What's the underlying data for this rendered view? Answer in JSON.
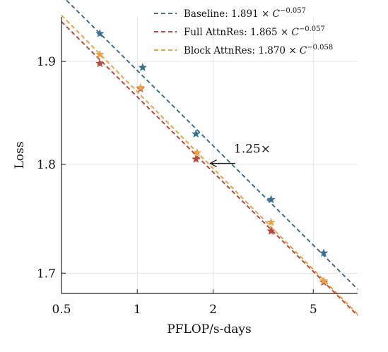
{
  "chart_data": {
    "type": "scatter",
    "title": "",
    "xlabel": "PFLOP/s-days",
    "ylabel": "Loss",
    "x_scale": "log",
    "y_scale": "log",
    "xlim": [
      0.5,
      7.5
    ],
    "ylim": [
      1.682,
      1.945
    ],
    "x_ticks": [
      {
        "value": 0.5,
        "label": "0.5"
      },
      {
        "value": 1,
        "label": "1"
      },
      {
        "value": 2,
        "label": "2"
      },
      {
        "value": 5,
        "label": "5"
      }
    ],
    "y_ticks": [
      {
        "value": 1.7,
        "label": "1.7"
      },
      {
        "value": 1.8,
        "label": "1.8"
      },
      {
        "value": 1.9,
        "label": "1.9"
      }
    ],
    "grid": true,
    "legend_position": "top-right",
    "series": [
      {
        "name": "Baseline",
        "legend": {
          "prefix": "Baseline: ",
          "coef": "1.891",
          "exp": "−0.057"
        },
        "color": "#3b7190",
        "fit": {
          "a": 1.891,
          "b": -0.057
        },
        "points": [
          [
            0.71,
            1.928
          ],
          [
            1.05,
            1.894
          ],
          [
            1.71,
            1.829
          ],
          [
            3.4,
            1.767
          ],
          [
            5.5,
            1.718
          ]
        ]
      },
      {
        "name": "Full AttnRes",
        "legend": {
          "prefix": "Full AttnRes: ",
          "coef": "1.865",
          "exp": "−0.057"
        },
        "color": "#b5493f",
        "fit": {
          "a": 1.865,
          "b": -0.057
        },
        "points": [
          [
            0.71,
            1.898
          ],
          [
            1.03,
            1.873
          ],
          [
            1.71,
            1.805
          ],
          [
            3.4,
            1.738
          ],
          [
            5.5,
            1.692
          ]
        ]
      },
      {
        "name": "Block AttnRes",
        "legend": {
          "prefix": "Block AttnRes: ",
          "coef": "1.870",
          "exp": "−0.058"
        },
        "color": "#e8a24a",
        "fit": {
          "a": 1.87,
          "b": -0.058
        },
        "points": [
          [
            0.71,
            1.907
          ],
          [
            1.03,
            1.874
          ],
          [
            1.73,
            1.811
          ],
          [
            3.4,
            1.746
          ],
          [
            5.5,
            1.693
          ]
        ]
      }
    ],
    "annotation": {
      "text": "1.25×",
      "loss": 1.801,
      "x_from": 2.45,
      "x_to": 1.95
    }
  }
}
